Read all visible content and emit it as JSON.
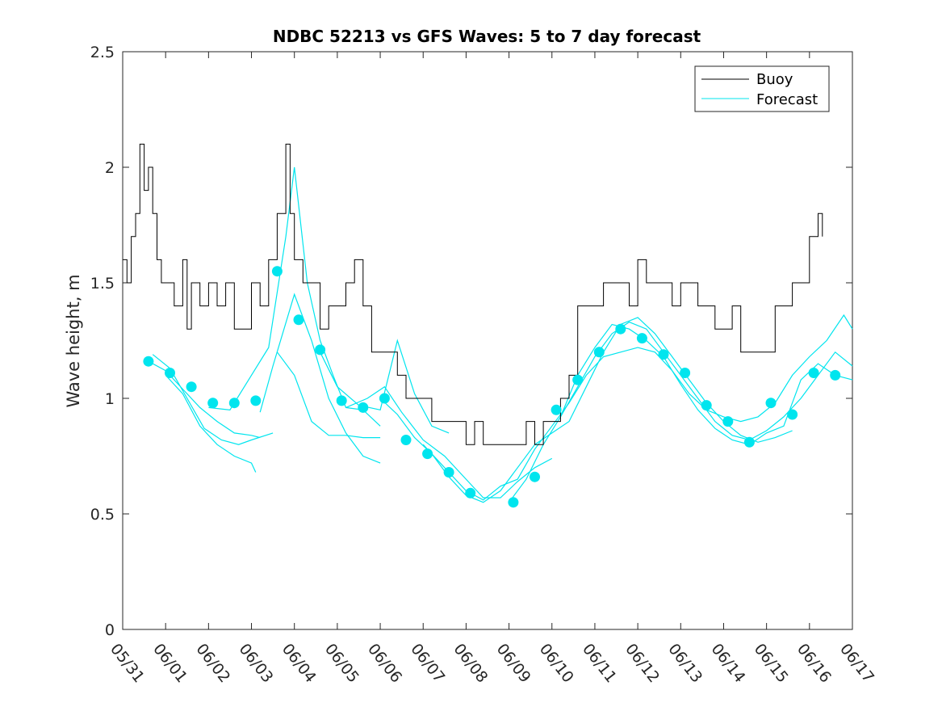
{
  "chart_data": {
    "type": "line",
    "title": "NDBC 52213 vs GFS Waves: 5 to 7 day forecast",
    "xlabel": "",
    "ylabel": "Wave height, m",
    "xlim": [
      0,
      17
    ],
    "ylim": [
      0,
      2.5
    ],
    "x_tick_labels": [
      "05/31",
      "06/01",
      "06/02",
      "06/03",
      "06/04",
      "06/05",
      "06/06",
      "06/07",
      "06/08",
      "06/09",
      "06/10",
      "06/11",
      "06/12",
      "06/13",
      "06/14",
      "06/15",
      "06/16",
      "06/17"
    ],
    "y_ticks": [
      0,
      0.5,
      1,
      1.5,
      2,
      2.5
    ],
    "y_tick_labels": [
      "0",
      "0.5",
      "1",
      "1.5",
      "2",
      "2.5"
    ],
    "legend_position": "top-right",
    "grid": false,
    "colors": {
      "buoy": "#000000",
      "forecast": "#00e5ee"
    },
    "series": [
      {
        "name": "Buoy",
        "kind": "line",
        "points": [
          [
            0.0,
            1.6
          ],
          [
            0.1,
            1.5
          ],
          [
            0.2,
            1.7
          ],
          [
            0.3,
            1.8
          ],
          [
            0.4,
            2.1
          ],
          [
            0.5,
            1.9
          ],
          [
            0.6,
            2.0
          ],
          [
            0.7,
            1.8
          ],
          [
            0.8,
            1.6
          ],
          [
            0.9,
            1.5
          ],
          [
            1.0,
            1.5
          ],
          [
            1.2,
            1.4
          ],
          [
            1.4,
            1.6
          ],
          [
            1.5,
            1.3
          ],
          [
            1.6,
            1.5
          ],
          [
            1.8,
            1.4
          ],
          [
            2.0,
            1.5
          ],
          [
            2.2,
            1.4
          ],
          [
            2.4,
            1.5
          ],
          [
            2.6,
            1.3
          ],
          [
            2.8,
            1.3
          ],
          [
            3.0,
            1.5
          ],
          [
            3.2,
            1.4
          ],
          [
            3.4,
            1.6
          ],
          [
            3.6,
            1.8
          ],
          [
            3.8,
            2.1
          ],
          [
            3.9,
            1.8
          ],
          [
            4.0,
            1.6
          ],
          [
            4.2,
            1.5
          ],
          [
            4.4,
            1.5
          ],
          [
            4.6,
            1.3
          ],
          [
            4.8,
            1.4
          ],
          [
            5.0,
            1.4
          ],
          [
            5.2,
            1.5
          ],
          [
            5.4,
            1.6
          ],
          [
            5.6,
            1.4
          ],
          [
            5.8,
            1.2
          ],
          [
            6.0,
            1.2
          ],
          [
            6.2,
            1.2
          ],
          [
            6.4,
            1.1
          ],
          [
            6.6,
            1.0
          ],
          [
            6.8,
            1.0
          ],
          [
            7.0,
            1.0
          ],
          [
            7.2,
            0.9
          ],
          [
            7.4,
            0.9
          ],
          [
            7.6,
            0.9
          ],
          [
            7.8,
            0.9
          ],
          [
            8.0,
            0.8
          ],
          [
            8.2,
            0.9
          ],
          [
            8.4,
            0.8
          ],
          [
            8.6,
            0.8
          ],
          [
            8.8,
            0.8
          ],
          [
            9.0,
            0.8
          ],
          [
            9.2,
            0.8
          ],
          [
            9.4,
            0.9
          ],
          [
            9.6,
            0.8
          ],
          [
            9.8,
            0.9
          ],
          [
            10.0,
            0.9
          ],
          [
            10.2,
            1.0
          ],
          [
            10.4,
            1.1
          ],
          [
            10.6,
            1.4
          ],
          [
            10.8,
            1.4
          ],
          [
            11.0,
            1.4
          ],
          [
            11.2,
            1.5
          ],
          [
            11.4,
            1.5
          ],
          [
            11.6,
            1.5
          ],
          [
            11.8,
            1.4
          ],
          [
            12.0,
            1.6
          ],
          [
            12.2,
            1.5
          ],
          [
            12.4,
            1.5
          ],
          [
            12.6,
            1.5
          ],
          [
            12.8,
            1.4
          ],
          [
            13.0,
            1.5
          ],
          [
            13.2,
            1.5
          ],
          [
            13.4,
            1.4
          ],
          [
            13.6,
            1.4
          ],
          [
            13.8,
            1.3
          ],
          [
            14.0,
            1.3
          ],
          [
            14.2,
            1.4
          ],
          [
            14.4,
            1.2
          ],
          [
            14.6,
            1.2
          ],
          [
            14.8,
            1.2
          ],
          [
            15.0,
            1.2
          ],
          [
            15.2,
            1.4
          ],
          [
            15.4,
            1.4
          ],
          [
            15.6,
            1.5
          ],
          [
            15.8,
            1.5
          ],
          [
            16.0,
            1.7
          ],
          [
            16.2,
            1.8
          ],
          [
            16.3,
            1.7
          ]
        ]
      },
      {
        "name": "Forecast",
        "kind": "line-segments",
        "segments": [
          [
            [
              0.6,
              1.16
            ],
            [
              1.0,
              1.12
            ],
            [
              1.4,
              1.04
            ],
            [
              1.8,
              0.96
            ],
            [
              2.2,
              0.9
            ],
            [
              2.6,
              0.85
            ],
            [
              3.0,
              0.84
            ],
            [
              3.2,
              0.83
            ]
          ],
          [
            [
              0.7,
              1.19
            ],
            [
              1.1,
              1.13
            ],
            [
              1.5,
              1.0
            ],
            [
              1.9,
              0.87
            ],
            [
              2.3,
              0.82
            ],
            [
              2.7,
              0.8
            ],
            [
              3.0,
              0.82
            ],
            [
              3.5,
              0.85
            ]
          ],
          [
            [
              1.0,
              1.1
            ],
            [
              1.4,
              1.02
            ],
            [
              1.8,
              0.88
            ],
            [
              2.2,
              0.8
            ],
            [
              2.6,
              0.75
            ],
            [
              3.0,
              0.72
            ],
            [
              3.1,
              0.68
            ]
          ],
          [
            [
              2.0,
              0.96
            ],
            [
              2.5,
              0.95
            ],
            [
              3.0,
              1.1
            ],
            [
              3.4,
              1.22
            ],
            [
              3.8,
              1.7
            ],
            [
              4.0,
              2.0
            ],
            [
              4.3,
              1.5
            ],
            [
              4.6,
              1.25
            ],
            [
              4.9,
              1.1
            ],
            [
              5.2,
              0.96
            ],
            [
              5.6,
              0.95
            ],
            [
              6.0,
              0.88
            ]
          ],
          [
            [
              3.2,
              0.94
            ],
            [
              3.5,
              1.14
            ],
            [
              4.0,
              1.45
            ],
            [
              4.4,
              1.25
            ],
            [
              4.8,
              1.0
            ],
            [
              5.2,
              0.85
            ],
            [
              5.6,
              0.75
            ],
            [
              6.0,
              0.72
            ]
          ],
          [
            [
              3.6,
              1.2
            ],
            [
              4.0,
              1.1
            ],
            [
              4.4,
              0.9
            ],
            [
              4.8,
              0.84
            ],
            [
              5.2,
              0.84
            ],
            [
              5.6,
              0.83
            ],
            [
              6.0,
              0.83
            ]
          ],
          [
            [
              4.6,
              1.2
            ],
            [
              5.0,
              1.05
            ],
            [
              5.5,
              0.97
            ],
            [
              6.0,
              0.95
            ],
            [
              6.4,
              1.25
            ],
            [
              6.8,
              1.02
            ],
            [
              7.2,
              0.88
            ],
            [
              7.6,
              0.85
            ]
          ],
          [
            [
              5.2,
              0.96
            ],
            [
              5.7,
              1.0
            ],
            [
              6.1,
              1.05
            ],
            [
              6.5,
              0.94
            ],
            [
              7.0,
              0.82
            ],
            [
              7.5,
              0.75
            ],
            [
              8.0,
              0.65
            ],
            [
              8.4,
              0.57
            ],
            [
              8.8,
              0.57
            ],
            [
              9.2,
              0.64
            ],
            [
              9.6,
              0.7
            ],
            [
              10.0,
              0.74
            ]
          ],
          [
            [
              6.0,
              1.0
            ],
            [
              6.4,
              0.93
            ],
            [
              6.8,
              0.83
            ],
            [
              7.2,
              0.76
            ],
            [
              7.6,
              0.66
            ],
            [
              8.0,
              0.58
            ],
            [
              8.4,
              0.55
            ],
            [
              8.8,
              0.6
            ],
            [
              9.2,
              0.7
            ],
            [
              9.6,
              0.8
            ],
            [
              10.0,
              0.85
            ],
            [
              10.4,
              0.9
            ],
            [
              10.8,
              1.05
            ],
            [
              11.2,
              1.2
            ],
            [
              11.6,
              1.32
            ],
            [
              12.0,
              1.35
            ],
            [
              12.4,
              1.28
            ],
            [
              12.8,
              1.18
            ],
            [
              13.2,
              1.08
            ],
            [
              13.6,
              0.98
            ],
            [
              14.0,
              0.9
            ],
            [
              14.4,
              0.84
            ],
            [
              14.8,
              0.81
            ],
            [
              15.2,
              0.83
            ],
            [
              15.6,
              0.86
            ]
          ],
          [
            [
              7.0,
              0.8
            ],
            [
              7.5,
              0.7
            ],
            [
              8.0,
              0.6
            ],
            [
              8.4,
              0.56
            ],
            [
              8.8,
              0.62
            ],
            [
              9.2,
              0.65
            ],
            [
              9.6,
              0.78
            ],
            [
              10.0,
              0.88
            ],
            [
              10.4,
              0.98
            ],
            [
              10.8,
              1.1
            ],
            [
              11.2,
              1.18
            ],
            [
              11.6,
              1.2
            ],
            [
              12.0,
              1.22
            ],
            [
              12.4,
              1.2
            ],
            [
              12.8,
              1.12
            ],
            [
              13.2,
              1.02
            ],
            [
              13.6,
              0.95
            ],
            [
              14.0,
              0.92
            ],
            [
              14.4,
              0.9
            ],
            [
              14.8,
              0.92
            ],
            [
              15.2,
              0.98
            ],
            [
              15.6,
              1.1
            ],
            [
              16.0,
              1.18
            ],
            [
              16.4,
              1.25
            ],
            [
              16.8,
              1.36
            ],
            [
              17.0,
              1.3
            ]
          ],
          [
            [
              9.0,
              0.55
            ],
            [
              9.4,
              0.65
            ],
            [
              9.8,
              0.8
            ],
            [
              10.2,
              0.92
            ],
            [
              10.6,
              1.05
            ],
            [
              11.0,
              1.18
            ],
            [
              11.4,
              1.28
            ],
            [
              11.8,
              1.33
            ],
            [
              12.2,
              1.3
            ],
            [
              12.6,
              1.2
            ],
            [
              13.0,
              1.1
            ],
            [
              13.4,
              1.0
            ],
            [
              13.8,
              0.9
            ],
            [
              14.2,
              0.84
            ],
            [
              14.6,
              0.82
            ],
            [
              15.0,
              0.86
            ],
            [
              15.4,
              0.92
            ],
            [
              15.8,
              1.0
            ],
            [
              16.2,
              1.1
            ],
            [
              16.6,
              1.2
            ],
            [
              17.0,
              1.14
            ]
          ],
          [
            [
              10.2,
              0.92
            ],
            [
              10.6,
              1.1
            ],
            [
              11.0,
              1.22
            ],
            [
              11.4,
              1.32
            ],
            [
              11.8,
              1.3
            ],
            [
              12.2,
              1.25
            ],
            [
              12.6,
              1.18
            ],
            [
              13.0,
              1.06
            ],
            [
              13.4,
              0.95
            ],
            [
              13.8,
              0.87
            ],
            [
              14.2,
              0.82
            ],
            [
              14.6,
              0.8
            ],
            [
              15.0,
              0.85
            ],
            [
              15.4,
              0.88
            ],
            [
              15.8,
              1.08
            ],
            [
              16.2,
              1.15
            ],
            [
              16.6,
              1.1
            ],
            [
              17.0,
              1.08
            ]
          ]
        ]
      },
      {
        "name": "",
        "kind": "markers",
        "points": [
          [
            0.6,
            1.16
          ],
          [
            1.1,
            1.11
          ],
          [
            1.6,
            1.05
          ],
          [
            2.1,
            0.98
          ],
          [
            2.6,
            0.98
          ],
          [
            3.1,
            0.99
          ],
          [
            3.6,
            1.55
          ],
          [
            4.1,
            1.34
          ],
          [
            4.6,
            1.21
          ],
          [
            5.1,
            0.99
          ],
          [
            5.6,
            0.96
          ],
          [
            6.1,
            1.0
          ],
          [
            6.6,
            0.82
          ],
          [
            7.1,
            0.76
          ],
          [
            7.6,
            0.68
          ],
          [
            8.1,
            0.59
          ],
          [
            9.1,
            0.55
          ],
          [
            9.6,
            0.66
          ],
          [
            10.1,
            0.95
          ],
          [
            10.6,
            1.08
          ],
          [
            11.1,
            1.2
          ],
          [
            11.6,
            1.3
          ],
          [
            12.1,
            1.26
          ],
          [
            12.6,
            1.19
          ],
          [
            13.1,
            1.11
          ],
          [
            13.6,
            0.97
          ],
          [
            14.1,
            0.9
          ],
          [
            14.6,
            0.81
          ],
          [
            15.1,
            0.98
          ],
          [
            15.6,
            0.93
          ],
          [
            16.1,
            1.11
          ],
          [
            16.6,
            1.1
          ]
        ]
      }
    ]
  }
}
